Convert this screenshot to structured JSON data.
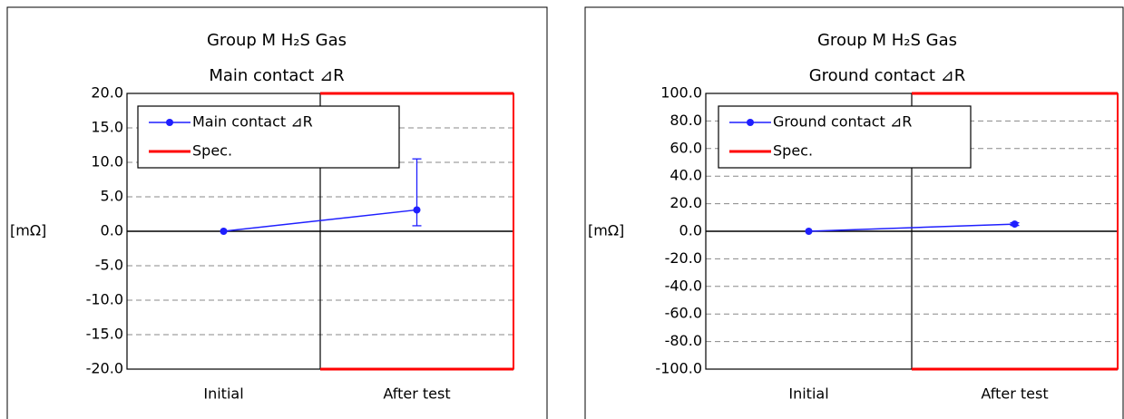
{
  "chart_data": [
    {
      "type": "line",
      "title": "Group M  H₂S Gas",
      "subtitle": "Main contact ⊿R",
      "ylabel": "[mΩ]",
      "categories": [
        "Initial",
        "After test"
      ],
      "series": [
        {
          "name": "Main contact ⊿R",
          "color": "#1f1fff",
          "values": [
            0,
            3.1
          ],
          "errors_low": [
            0,
            2.3
          ],
          "errors_high": [
            0,
            7.4
          ]
        }
      ],
      "spec": {
        "name": "Spec.",
        "color": "#ff0000",
        "upper": [
          null,
          20
        ],
        "lower": [
          null,
          -20
        ]
      },
      "ylim": [
        -20,
        20
      ],
      "yticks": [
        {
          "value": -20,
          "label": "-20.0"
        },
        {
          "value": -15,
          "label": "-15.0"
        },
        {
          "value": -10,
          "label": "-10.0"
        },
        {
          "value": -5,
          "label": "-5.0"
        },
        {
          "value": 0,
          "label": "0.0"
        },
        {
          "value": 5,
          "label": "5.0"
        },
        {
          "value": 10,
          "label": "10.0"
        },
        {
          "value": 15,
          "label": "15.0"
        },
        {
          "value": 20,
          "label": "20.0"
        }
      ],
      "grid": true,
      "legend": "upper left"
    },
    {
      "type": "line",
      "title": "Group M  H₂S Gas",
      "subtitle": "Ground contact ⊿R",
      "ylabel": "[mΩ]",
      "categories": [
        "Initial",
        "After test"
      ],
      "series": [
        {
          "name": "Ground contact ⊿R",
          "color": "#1f1fff",
          "values": [
            0,
            5.2
          ],
          "errors_low": [
            0,
            1
          ],
          "errors_high": [
            0,
            1
          ]
        }
      ],
      "spec": {
        "name": "Spec.",
        "color": "#ff0000",
        "upper": [
          null,
          100
        ],
        "lower": [
          null,
          -100
        ]
      },
      "ylim": [
        -100,
        100
      ],
      "yticks": [
        {
          "value": -100,
          "label": "-100.0"
        },
        {
          "value": -80,
          "label": "-80.0"
        },
        {
          "value": -60,
          "label": "-60.0"
        },
        {
          "value": -40,
          "label": "-40.0"
        },
        {
          "value": -20,
          "label": "-20.0"
        },
        {
          "value": 0,
          "label": "0.0"
        },
        {
          "value": 20,
          "label": "20.0"
        },
        {
          "value": 40,
          "label": "40.0"
        },
        {
          "value": 60,
          "label": "60.0"
        },
        {
          "value": 80,
          "label": "80.0"
        },
        {
          "value": 100,
          "label": "100.0"
        }
      ],
      "grid": true,
      "legend": "upper left"
    }
  ]
}
